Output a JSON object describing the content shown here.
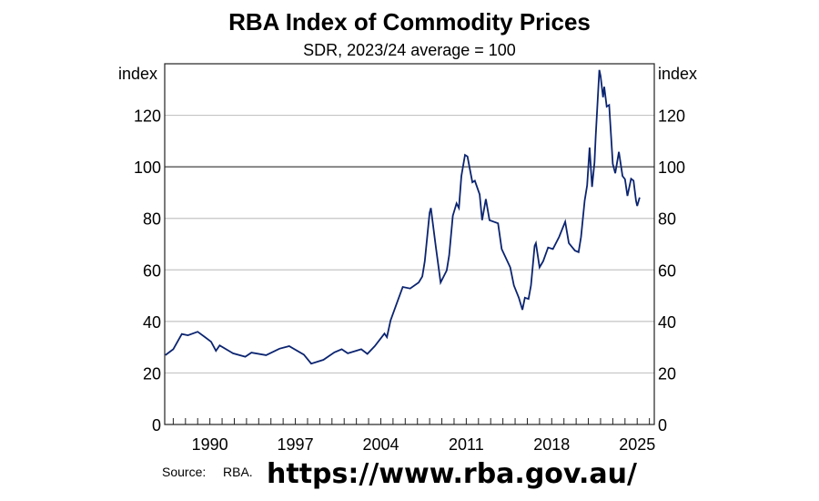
{
  "chart_data": {
    "type": "line",
    "title": "RBA Index of Commodity Prices",
    "subtitle": "SDR, 2023/24 average = 100",
    "ylabel_left": "index",
    "ylabel_right": "index",
    "ylim": [
      0,
      140
    ],
    "xlim": [
      1986.3,
      2026.4
    ],
    "yticks": [
      0,
      20,
      40,
      60,
      80,
      100,
      120
    ],
    "xtick_labels": [
      1990,
      1997,
      2004,
      2011,
      2018,
      2025
    ],
    "reference_line": 100,
    "grid": true,
    "line_color": "#0b2470",
    "series": [
      {
        "name": "Index",
        "x": [
          1986.35,
          1987.0,
          1987.7,
          1988.2,
          1989.0,
          1989.6,
          1990.1,
          1990.5,
          1990.8,
          1991.9,
          1992.9,
          1993.4,
          1994.6,
          1995.7,
          1996.5,
          1997.7,
          1998.3,
          1999.3,
          2000.2,
          2000.8,
          2001.3,
          2002.4,
          2002.9,
          2003.5,
          2004.3,
          2004.5,
          2004.8,
          2005.3,
          2005.8,
          2006.4,
          2007.1,
          2007.4,
          2007.6,
          2008.0,
          2008.1,
          2008.5,
          2008.9,
          2009.4,
          2009.6,
          2009.9,
          2010.2,
          2010.4,
          2010.6,
          2010.9,
          2011.1,
          2011.5,
          2011.7,
          2012.1,
          2012.3,
          2012.6,
          2012.9,
          2013.6,
          2013.9,
          2014.6,
          2014.9,
          2015.3,
          2015.6,
          2015.8,
          2016.1,
          2016.3,
          2016.6,
          2016.7,
          2017.0,
          2017.3,
          2017.7,
          2018.1,
          2018.6,
          2019.1,
          2019.4,
          2019.9,
          2020.2,
          2020.4,
          2020.7,
          2020.9,
          2021.1,
          2021.3,
          2021.5,
          2021.6,
          2021.9,
          2022.0,
          2022.2,
          2022.3,
          2022.5,
          2022.7,
          2023.0,
          2023.2,
          2023.5,
          2023.8,
          2024.0,
          2024.2,
          2024.5,
          2024.7,
          2024.9,
          2025.0,
          2025.2
        ],
        "values": [
          26.9,
          29.2,
          35.1,
          34.6,
          36.0,
          33.9,
          32.1,
          28.6,
          30.7,
          27.6,
          26.3,
          27.9,
          26.9,
          29.4,
          30.4,
          27.1,
          23.6,
          25.1,
          28.0,
          29.2,
          27.6,
          29.2,
          27.4,
          30.4,
          35.3,
          33.9,
          40.4,
          46.9,
          53.4,
          52.8,
          55.1,
          57.5,
          63.4,
          82.2,
          84.0,
          69.3,
          55.1,
          59.8,
          65.7,
          81.0,
          85.8,
          84.0,
          96.4,
          104.6,
          104.0,
          94.0,
          94.6,
          89.3,
          79.3,
          87.5,
          79.3,
          78.1,
          68.1,
          61.0,
          54.0,
          49.2,
          44.5,
          49.2,
          48.7,
          54.0,
          69.3,
          70.4,
          61.0,
          63.4,
          68.7,
          68.1,
          72.8,
          78.7,
          70.4,
          67.5,
          66.9,
          72.8,
          86.9,
          92.8,
          107.5,
          92.2,
          101.7,
          111.7,
          137.6,
          135.2,
          127.0,
          131.1,
          123.4,
          124.0,
          101.1,
          97.5,
          105.8,
          96.4,
          95.2,
          88.7,
          95.4,
          94.6,
          86.9,
          84.8,
          88.1
        ]
      }
    ]
  },
  "footer": {
    "source_label": "Source:",
    "source_value": "RBA.",
    "url": "https://www.rba.gov.au/"
  }
}
